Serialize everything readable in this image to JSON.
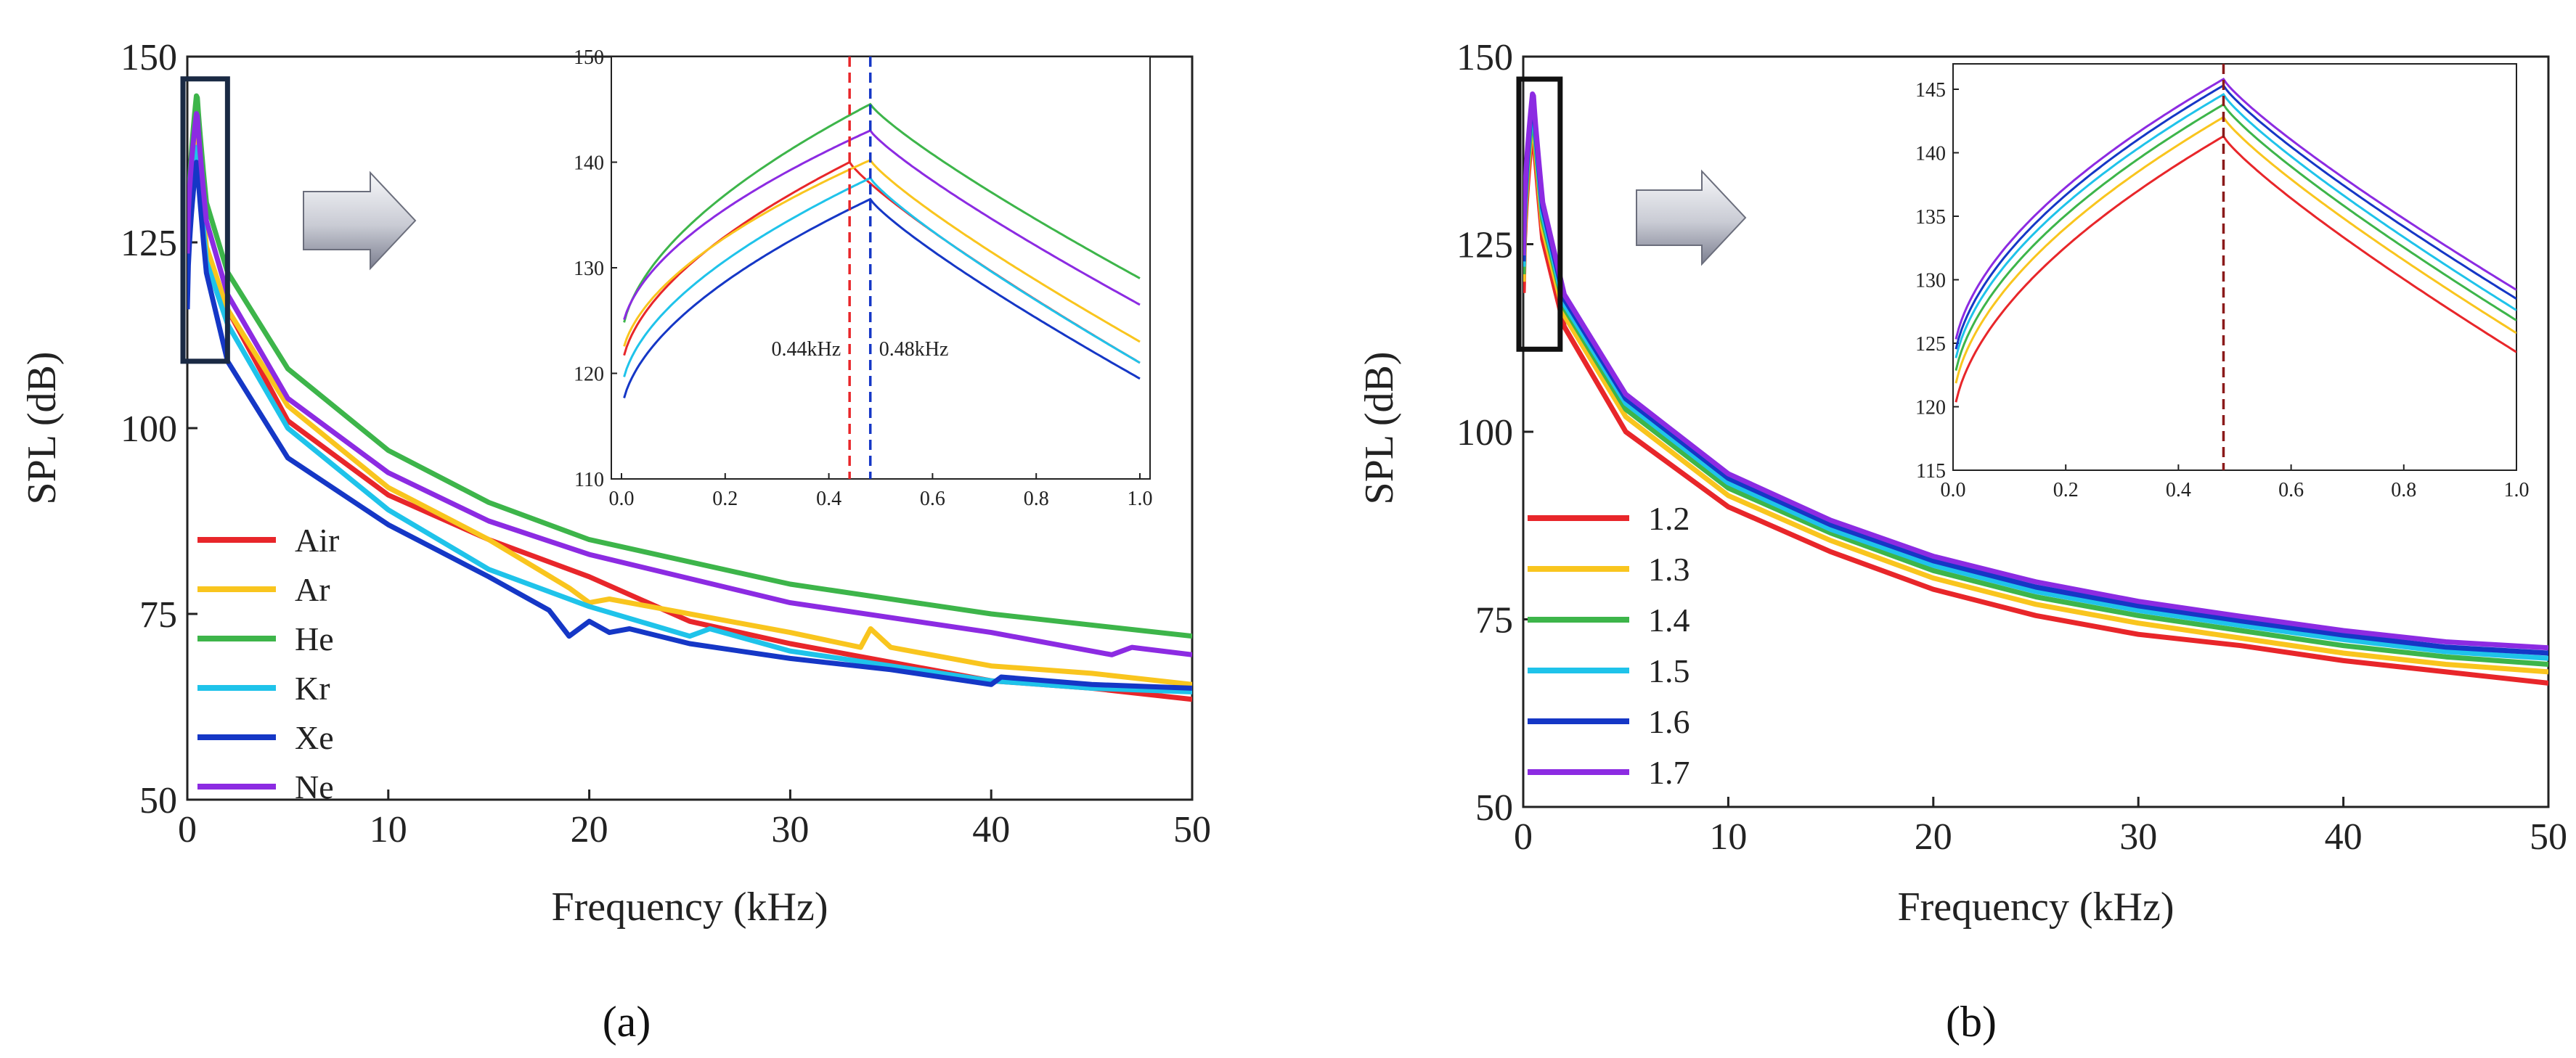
{
  "chart_data": [
    {
      "id": "a",
      "type": "line",
      "panel_label": "(a)",
      "xlabel": "Frequency (kHz)",
      "ylabel": "SPL (dB)",
      "xlim": [
        0,
        50
      ],
      "ylim": [
        50,
        150
      ],
      "xticks": [
        0,
        10,
        20,
        30,
        40,
        50
      ],
      "yticks": [
        50,
        75,
        100,
        125,
        150
      ],
      "x_tick_labels": [
        "0",
        "10",
        "20",
        "30",
        "40",
        "50"
      ],
      "y_tick_labels": [
        "50",
        "75",
        "100",
        "125",
        "150"
      ],
      "legend_position": "lower-left",
      "zoom_box": {
        "x": [
          0,
          2
        ],
        "y": [
          109,
          147
        ]
      },
      "series": [
        {
          "name": "Air",
          "color": "#e8262a",
          "a": 120,
          "p": 140,
          "fp": 0.44,
          "e": 121,
          "w": 0.35,
          "hf": [
            [
              2,
              116
            ],
            [
              5,
              101
            ],
            [
              10,
              91
            ],
            [
              15,
              85
            ],
            [
              20,
              80
            ],
            [
              25,
              74
            ],
            [
              30,
              71
            ],
            [
              35,
              68.5
            ],
            [
              40,
              66
            ],
            [
              45,
              65
            ],
            [
              50,
              63.5
            ]
          ]
        },
        {
          "name": "Ar",
          "color": "#f9c51e",
          "a": 121,
          "p": 140.2,
          "fp": 0.48,
          "e": 123,
          "w": 0.35,
          "hf": [
            [
              2,
              116
            ],
            [
              5,
              103
            ],
            [
              10,
              92
            ],
            [
              15,
              85
            ],
            [
              19,
              78.5
            ],
            [
              20,
              76.5
            ],
            [
              21,
              77
            ],
            [
              25,
              75
            ],
            [
              30,
              72.5
            ],
            [
              33.5,
              70.5
            ],
            [
              34,
              73
            ],
            [
              35,
              70.5
            ],
            [
              40,
              68
            ],
            [
              45,
              67
            ],
            [
              50,
              65.5
            ]
          ]
        },
        {
          "name": "He",
          "color": "#3db54a",
          "a": 123,
          "p": 145.5,
          "fp": 0.48,
          "e": 129,
          "w": 0.35,
          "hf": [
            [
              2,
              121
            ],
            [
              5,
              108
            ],
            [
              10,
              97
            ],
            [
              15,
              90
            ],
            [
              20,
              85
            ],
            [
              30,
              79
            ],
            [
              40,
              75
            ],
            [
              50,
              72
            ]
          ]
        },
        {
          "name": "Kr",
          "color": "#1fc3ea",
          "a": 118,
          "p": 138.5,
          "fp": 0.48,
          "e": 121,
          "w": 0.35,
          "hf": [
            [
              2,
              114
            ],
            [
              5,
              100
            ],
            [
              10,
              89
            ],
            [
              15,
              81
            ],
            [
              20,
              76
            ],
            [
              25,
              72
            ],
            [
              26,
              73
            ],
            [
              30,
              70
            ],
            [
              35,
              68
            ],
            [
              40,
              66
            ],
            [
              45,
              65
            ],
            [
              50,
              64.5
            ]
          ]
        },
        {
          "name": "Xe",
          "color": "#1537c6",
          "a": 116,
          "p": 136.5,
          "fp": 0.48,
          "e": 119.5,
          "w": 0.35,
          "hf": [
            [
              2,
              109
            ],
            [
              5,
              96
            ],
            [
              10,
              87
            ],
            [
              15,
              80
            ],
            [
              18,
              75.5
            ],
            [
              19,
              72
            ],
            [
              20,
              74
            ],
            [
              21,
              72.5
            ],
            [
              22,
              73
            ],
            [
              25,
              71
            ],
            [
              30,
              69
            ],
            [
              35,
              67.5
            ],
            [
              40,
              65.5
            ],
            [
              40.5,
              66.5
            ],
            [
              45,
              65.5
            ],
            [
              50,
              65
            ]
          ]
        },
        {
          "name": "Ne",
          "color": "#8c2be2",
          "a": 123.5,
          "p": 143,
          "fp": 0.48,
          "e": 126.5,
          "w": 0.35,
          "hf": [
            [
              2,
              118
            ],
            [
              5,
              104
            ],
            [
              10,
              94
            ],
            [
              15,
              87.5
            ],
            [
              20,
              83
            ],
            [
              30,
              76.5
            ],
            [
              40,
              72.5
            ],
            [
              45,
              70
            ],
            [
              46,
              69.5
            ],
            [
              47,
              70.5
            ],
            [
              50,
              69.5
            ]
          ]
        }
      ],
      "inset": {
        "xlim": [
          0,
          1
        ],
        "ylim": [
          110,
          150
        ],
        "xticks": [
          0.0,
          0.2,
          0.4,
          0.6,
          0.8,
          1.0
        ],
        "yticks": [
          110,
          120,
          130,
          140,
          150
        ],
        "x_tick_labels": [
          "0.0",
          "0.2",
          "0.4",
          "0.6",
          "0.8",
          "1.0"
        ],
        "y_tick_labels": [
          "110",
          "120",
          "130",
          "140",
          "150"
        ],
        "annotations": [
          {
            "text": "0.44kHz",
            "x": 0.44,
            "color": "#e8262a"
          },
          {
            "text": "0.48kHz",
            "x": 0.48,
            "color": "#1537c6"
          }
        ]
      }
    },
    {
      "id": "b",
      "type": "line",
      "panel_label": "(b)",
      "xlabel": "Frequency (kHz)",
      "ylabel": "SPL (dB)",
      "xlim": [
        0,
        50
      ],
      "ylim": [
        50,
        150
      ],
      "xticks": [
        0,
        10,
        20,
        30,
        40,
        50
      ],
      "yticks": [
        50,
        75,
        100,
        125,
        150
      ],
      "x_tick_labels": [
        "0",
        "10",
        "20",
        "30",
        "40",
        "50"
      ],
      "y_tick_labels": [
        "50",
        "75",
        "100",
        "125",
        "150"
      ],
      "legend_position": "lower-left",
      "zoom_box": {
        "x": [
          0,
          1.8
        ],
        "y": [
          111,
          147
        ]
      },
      "series": [
        {
          "name": "1.2",
          "color": "#e8262a",
          "a": 118.5,
          "p": 141.3,
          "fp": 0.48,
          "e": 124.3,
          "w": 0.3,
          "hf": [
            [
              2,
              114
            ],
            [
              5,
              100
            ],
            [
              10,
              90
            ],
            [
              15,
              84
            ],
            [
              20,
              79
            ],
            [
              25,
              75.5
            ],
            [
              30,
              73
            ],
            [
              35,
              71.5
            ],
            [
              40,
              69.5
            ],
            [
              45,
              68
            ],
            [
              50,
              66.5
            ]
          ]
        },
        {
          "name": "1.3",
          "color": "#f9c51e",
          "a": 120,
          "p": 142.8,
          "fp": 0.48,
          "e": 125.8,
          "w": 0.3,
          "hf": [
            [
              2,
              115.5
            ],
            [
              5,
              102
            ],
            [
              10,
              91.5
            ],
            [
              15,
              85.5
            ],
            [
              20,
              80.5
            ],
            [
              25,
              77
            ],
            [
              30,
              74.5
            ],
            [
              35,
              72.5
            ],
            [
              40,
              70.5
            ],
            [
              45,
              69
            ],
            [
              50,
              68
            ]
          ]
        },
        {
          "name": "1.4",
          "color": "#3db54a",
          "a": 121,
          "p": 143.8,
          "fp": 0.48,
          "e": 126.8,
          "w": 0.3,
          "hf": [
            [
              2,
              116.5
            ],
            [
              5,
              103
            ],
            [
              10,
              92.5
            ],
            [
              15,
              86.5
            ],
            [
              20,
              81.5
            ],
            [
              25,
              78
            ],
            [
              30,
              75.5
            ],
            [
              35,
              73.5
            ],
            [
              40,
              71.5
            ],
            [
              45,
              70
            ],
            [
              50,
              69
            ]
          ]
        },
        {
          "name": "1.5",
          "color": "#1fc3ea",
          "a": 122,
          "p": 144.6,
          "fp": 0.48,
          "e": 127.6,
          "w": 0.3,
          "hf": [
            [
              2,
              117
            ],
            [
              5,
              103.8
            ],
            [
              10,
              93.2
            ],
            [
              15,
              87
            ],
            [
              20,
              82.2
            ],
            [
              25,
              78.7
            ],
            [
              30,
              76.2
            ],
            [
              35,
              74.2
            ],
            [
              40,
              72.3
            ],
            [
              45,
              70.7
            ],
            [
              50,
              69.8
            ]
          ]
        },
        {
          "name": "1.6",
          "color": "#1537c6",
          "a": 122.7,
          "p": 145.3,
          "fp": 0.48,
          "e": 128.5,
          "w": 0.3,
          "hf": [
            [
              2,
              117.7
            ],
            [
              5,
              104.4
            ],
            [
              10,
              93.8
            ],
            [
              15,
              87.6
            ],
            [
              20,
              82.8
            ],
            [
              25,
              79.3
            ],
            [
              30,
              76.8
            ],
            [
              35,
              74.8
            ],
            [
              40,
              72.9
            ],
            [
              45,
              71.3
            ],
            [
              50,
              70.5
            ]
          ]
        },
        {
          "name": "1.7",
          "color": "#8c2be2",
          "a": 123.5,
          "p": 145.8,
          "fp": 0.48,
          "e": 129.2,
          "w": 0.3,
          "hf": [
            [
              2,
              118.3
            ],
            [
              5,
              105
            ],
            [
              10,
              94.4
            ],
            [
              15,
              88.2
            ],
            [
              20,
              83.4
            ],
            [
              25,
              80
            ],
            [
              30,
              77.4
            ],
            [
              35,
              75.4
            ],
            [
              40,
              73.5
            ],
            [
              45,
              72
            ],
            [
              50,
              71.2
            ]
          ]
        }
      ],
      "inset": {
        "xlim": [
          0,
          1
        ],
        "ylim": [
          115,
          147
        ],
        "xticks": [
          0.0,
          0.2,
          0.4,
          0.6,
          0.8,
          1.0
        ],
        "yticks": [
          115,
          120,
          125,
          130,
          135,
          140,
          145
        ],
        "x_tick_labels": [
          "0.0",
          "0.2",
          "0.4",
          "0.6",
          "0.8",
          "1.0"
        ],
        "y_tick_labels": [
          "115",
          "120",
          "125",
          "130",
          "135",
          "140",
          "145"
        ],
        "annotations": [
          {
            "text": "",
            "x": 0.48,
            "color": "#8b1a1a"
          }
        ]
      }
    }
  ],
  "colors": {
    "axis": "#222222",
    "arrow_fill_light": "#f3f4f7",
    "arrow_fill_dark": "#7c7f90",
    "zoom_box_a": "#1a2a44",
    "zoom_box_b": "#111111"
  }
}
